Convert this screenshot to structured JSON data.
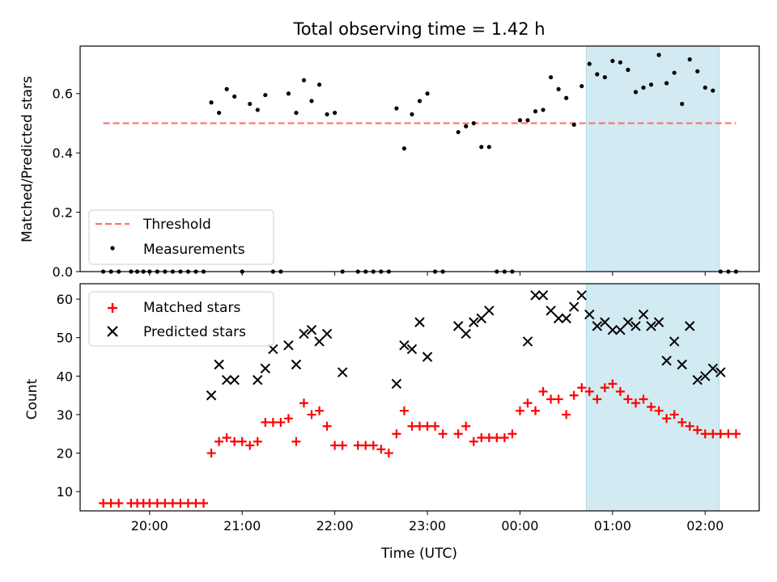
{
  "chart_data": [
    {
      "type": "scatter",
      "title": "Total observing time = 1.42 h",
      "ylabel": "Matched/Predicted stars",
      "ylim": [
        0,
        0.76
      ],
      "yticks": [
        "0.0",
        "0.2",
        "0.4",
        "0.6"
      ],
      "threshold": {
        "name": "Threshold",
        "value": 0.5,
        "color": "#ff7070",
        "style": "dashed"
      },
      "shaded_interval": {
        "start": "00:43",
        "end": "02:09",
        "color": "#add8e6"
      },
      "legend_loc": "lower-left",
      "series": [
        {
          "name": "Measurements",
          "color": "#000000",
          "marker": "dot",
          "x": [
            "19:30",
            "19:35",
            "19:40",
            "19:48",
            "19:52",
            "19:56",
            "20:00",
            "20:05",
            "20:10",
            "20:15",
            "20:20",
            "20:25",
            "20:30",
            "20:35",
            "20:40",
            "20:45",
            "20:50",
            "20:55",
            "21:00",
            "21:05",
            "21:10",
            "21:15",
            "21:20",
            "21:25",
            "21:30",
            "21:35",
            "21:40",
            "21:45",
            "21:50",
            "21:55",
            "22:00",
            "22:05",
            "22:15",
            "22:20",
            "22:25",
            "22:30",
            "22:35",
            "22:40",
            "22:45",
            "22:50",
            "22:55",
            "23:00",
            "23:05",
            "23:10",
            "23:20",
            "23:25",
            "23:30",
            "23:35",
            "23:40",
            "23:45",
            "23:50",
            "23:55",
            "00:00",
            "00:05",
            "00:10",
            "00:15",
            "00:20",
            "00:25",
            "00:30",
            "00:35",
            "00:40",
            "00:45",
            "00:50",
            "00:55",
            "01:00",
            "01:05",
            "01:10",
            "01:15",
            "01:20",
            "01:25",
            "01:30",
            "01:35",
            "01:40",
            "01:45",
            "01:50",
            "01:55",
            "02:00",
            "02:05",
            "02:10",
            "02:15",
            "02:20"
          ],
          "y": [
            0,
            0,
            0,
            0,
            0,
            0,
            0,
            0,
            0,
            0,
            0,
            0,
            0,
            0,
            0.57,
            0.535,
            0.615,
            0.59,
            0,
            0.565,
            0.545,
            0.595,
            0,
            0,
            0.6,
            0.535,
            0.645,
            0.575,
            0.63,
            0.53,
            0.535,
            0,
            0,
            0,
            0,
            0,
            0,
            0.55,
            0.415,
            0.53,
            0.575,
            0.6,
            0,
            0,
            0.47,
            0.49,
            0.5,
            0.42,
            0.42,
            0,
            0,
            0,
            0.51,
            0.51,
            0.54,
            0.545,
            0.655,
            0.615,
            0.585,
            0.495,
            0.625,
            0.7,
            0.665,
            0.655,
            0.71,
            0.705,
            0.68,
            0.605,
            0.62,
            0.63,
            0.73,
            0.635,
            0.67,
            0.565,
            0.715,
            0.675,
            0.62,
            0.61,
            0,
            0,
            0
          ]
        }
      ]
    },
    {
      "type": "scatter",
      "xlabel": "Time (UTC)",
      "ylabel": "Count",
      "ylim": [
        5,
        64
      ],
      "yticks": [
        "10",
        "20",
        "30",
        "40",
        "50",
        "60"
      ],
      "xticks": [
        "20:00",
        "21:00",
        "22:00",
        "23:00",
        "00:00",
        "01:00",
        "02:00"
      ],
      "shaded_interval": {
        "start": "00:43",
        "end": "02:09",
        "color": "#add8e6"
      },
      "legend_loc": "upper-left",
      "series": [
        {
          "name": "Matched stars",
          "color": "#ff0000",
          "marker": "plus",
          "x": [
            "19:30",
            "19:35",
            "19:40",
            "19:48",
            "19:52",
            "19:56",
            "20:00",
            "20:05",
            "20:10",
            "20:15",
            "20:20",
            "20:25",
            "20:30",
            "20:35",
            "20:40",
            "20:45",
            "20:50",
            "20:55",
            "21:00",
            "21:05",
            "21:10",
            "21:15",
            "21:20",
            "21:25",
            "21:30",
            "21:35",
            "21:40",
            "21:45",
            "21:50",
            "21:55",
            "22:00",
            "22:05",
            "22:15",
            "22:20",
            "22:25",
            "22:30",
            "22:35",
            "22:40",
            "22:45",
            "22:50",
            "22:55",
            "23:00",
            "23:05",
            "23:10",
            "23:20",
            "23:25",
            "23:30",
            "23:35",
            "23:40",
            "23:45",
            "23:50",
            "23:55",
            "00:00",
            "00:05",
            "00:10",
            "00:15",
            "00:20",
            "00:25",
            "00:30",
            "00:35",
            "00:40",
            "00:45",
            "00:50",
            "00:55",
            "01:00",
            "01:05",
            "01:10",
            "01:15",
            "01:20",
            "01:25",
            "01:30",
            "01:35",
            "01:40",
            "01:45",
            "01:50",
            "01:55",
            "02:00",
            "02:05",
            "02:10",
            "02:15",
            "02:20"
          ],
          "y": [
            7,
            7,
            7,
            7,
            7,
            7,
            7,
            7,
            7,
            7,
            7,
            7,
            7,
            7,
            20,
            23,
            24,
            23,
            23,
            22,
            23,
            28,
            28,
            28,
            29,
            23,
            33,
            30,
            31,
            27,
            22,
            22,
            22,
            22,
            22,
            21,
            20,
            25,
            31,
            27,
            27,
            27,
            27,
            25,
            25,
            27,
            23,
            24,
            24,
            24,
            24,
            25,
            31,
            33,
            31,
            36,
            34,
            34,
            30,
            35,
            37,
            36,
            34,
            37,
            38,
            36,
            34,
            33,
            34,
            32,
            31,
            29,
            30,
            28,
            27,
            26,
            25,
            25,
            25,
            25,
            25
          ]
        },
        {
          "name": "Predicted stars",
          "color": "#000000",
          "marker": "x",
          "x": [
            "20:40",
            "20:45",
            "20:50",
            "20:55",
            "21:10",
            "21:15",
            "21:20",
            "21:30",
            "21:35",
            "21:40",
            "21:45",
            "21:50",
            "21:55",
            "22:05",
            "22:40",
            "22:45",
            "22:50",
            "22:55",
            "23:00",
            "23:20",
            "23:25",
            "23:30",
            "23:35",
            "23:40",
            "00:05",
            "00:10",
            "00:15",
            "00:20",
            "00:25",
            "00:30",
            "00:35",
            "00:40",
            "00:45",
            "00:50",
            "00:55",
            "01:00",
            "01:05",
            "01:10",
            "01:15",
            "01:20",
            "01:25",
            "01:30",
            "01:35",
            "01:40",
            "01:45",
            "01:50",
            "01:55",
            "02:00",
            "02:05",
            "02:10"
          ],
          "y": [
            35,
            43,
            39,
            39,
            39,
            42,
            47,
            48,
            43,
            51,
            52,
            49,
            51,
            41,
            38,
            48,
            47,
            54,
            45,
            53,
            51,
            54,
            55,
            57,
            49,
            61,
            61,
            57,
            55,
            55,
            58,
            61,
            56,
            53,
            54,
            52,
            52,
            54,
            53,
            56,
            53,
            54,
            44,
            49,
            43,
            53,
            39,
            40,
            42,
            41
          ]
        }
      ]
    }
  ]
}
